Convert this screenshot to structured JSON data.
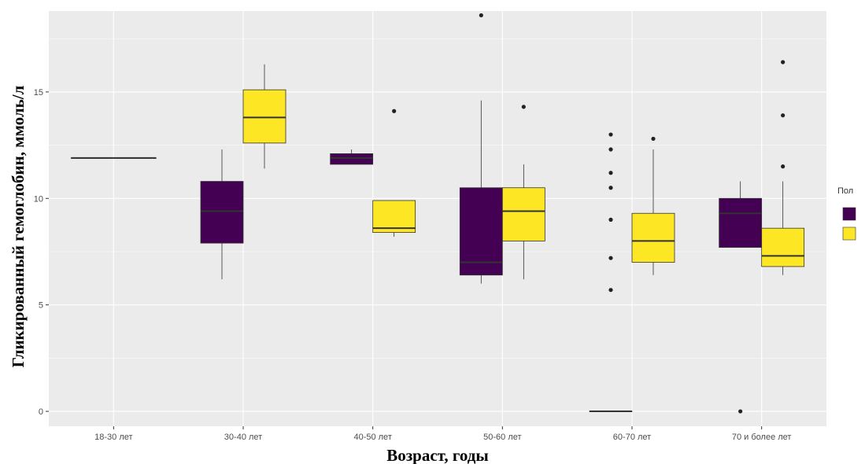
{
  "chart_data": {
    "type": "boxplot",
    "title": "",
    "xlabel": "Возраст, годы",
    "ylabel": "Гликированный гемоглобин, ммоль/л",
    "categories": [
      "18-30 лет",
      "30-40 лет",
      "40-50 лет",
      "50-60 лет",
      "60-70 лет",
      "70 и более лет"
    ],
    "y_ticks": [
      0,
      5,
      10,
      15
    ],
    "ylim": [
      -0.7,
      18.8
    ],
    "grid": true,
    "legend": {
      "title": "Пол",
      "position": "right",
      "labels": [
        "",
        ""
      ]
    },
    "series": [
      {
        "color": "#440154",
        "boxes": [
          {
            "category": "18-30 лет",
            "min": 11.9,
            "q1": 11.9,
            "median": 11.9,
            "q3": 11.9,
            "max": 11.9,
            "outliers": []
          },
          {
            "category": "30-40 лет",
            "min": 6.2,
            "q1": 7.9,
            "median": 9.4,
            "q3": 10.8,
            "max": 12.3,
            "outliers": []
          },
          {
            "category": "40-50 лет",
            "min": 11.6,
            "q1": 11.6,
            "median": 11.9,
            "q3": 12.1,
            "max": 12.3,
            "outliers": []
          },
          {
            "category": "50-60 лет",
            "min": 6.0,
            "q1": 6.4,
            "median": 7.0,
            "q3": 10.5,
            "max": 14.6,
            "outliers": [
              18.6
            ]
          },
          {
            "category": "60-70 лет",
            "min": 0.0,
            "q1": 0.0,
            "median": 0.0,
            "q3": 0.0,
            "max": 0.0,
            "outliers": [
              13.0,
              12.3,
              11.2,
              10.5,
              9.0,
              7.2,
              5.7
            ]
          },
          {
            "category": "70 и более лет",
            "min": 7.7,
            "q1": 7.7,
            "median": 9.3,
            "q3": 10.0,
            "max": 10.8,
            "outliers": [
              0.0
            ]
          }
        ]
      },
      {
        "color": "#fde725",
        "boxes": [
          {
            "category": "18-30 лет",
            "min": null,
            "q1": null,
            "median": null,
            "q3": null,
            "max": null,
            "outliers": []
          },
          {
            "category": "30-40 лет",
            "min": 11.4,
            "q1": 12.6,
            "median": 13.8,
            "q3": 15.1,
            "max": 16.3,
            "outliers": []
          },
          {
            "category": "40-50 лет",
            "min": 8.2,
            "q1": 8.4,
            "median": 8.6,
            "q3": 9.9,
            "max": 9.9,
            "outliers": [
              14.1
            ]
          },
          {
            "category": "50-60 лет",
            "min": 6.2,
            "q1": 8.0,
            "median": 9.4,
            "q3": 10.5,
            "max": 11.6,
            "outliers": [
              14.3
            ]
          },
          {
            "category": "60-70 лет",
            "min": 6.4,
            "q1": 7.0,
            "median": 8.0,
            "q3": 9.3,
            "max": 12.3,
            "outliers": [
              12.8
            ]
          },
          {
            "category": "70 и более лет",
            "min": 6.4,
            "q1": 6.8,
            "median": 7.3,
            "q3": 8.6,
            "max": 10.8,
            "outliers": [
              16.4,
              13.9,
              11.5
            ]
          }
        ]
      }
    ]
  }
}
